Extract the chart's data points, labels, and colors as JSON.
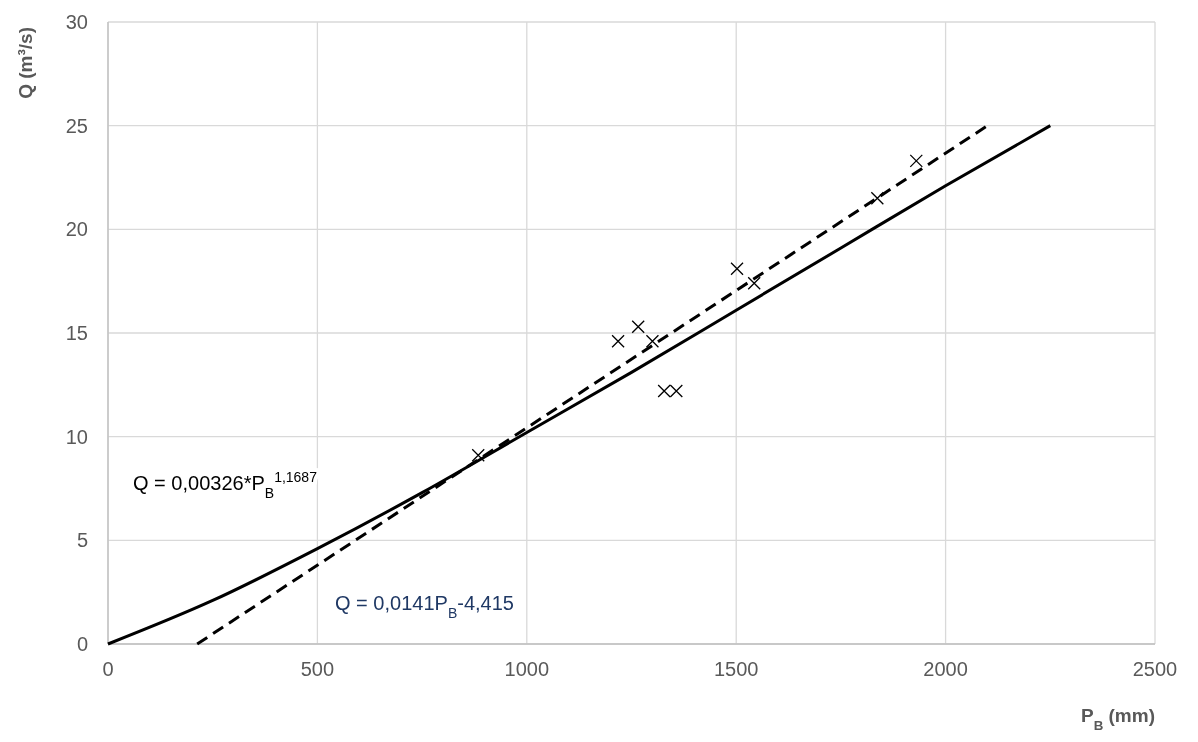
{
  "chart_data": {
    "type": "scatter",
    "xlabel": "P$_{B}$ (mm)",
    "ylabel": "Q (m³/s)",
    "xlim": [
      0,
      2500
    ],
    "xticks": [
      0,
      500,
      1000,
      1500,
      2000,
      2500
    ],
    "ylim": [
      0,
      30
    ],
    "yticks": [
      0,
      5,
      10,
      15,
      20,
      25,
      30
    ],
    "grid": true,
    "annotations": [
      "Q = 0,00326*P$_{B}$$^{1,1687}$",
      "Q = 0,0141P$_{B}$-4,415"
    ],
    "series": [
      {
        "color": "#000000",
        "marker": "cross",
        "x": [
          884,
          1218,
          1266,
          1300,
          1328,
          1357,
          1502,
          1543,
          1837,
          1930
        ],
        "values": [
          9.1,
          14.6,
          15.3,
          14.6,
          12.2,
          12.2,
          18.1,
          17.4,
          21.5,
          23.3
        ]
      },
      {
        "type": "line",
        "color": "#000000",
        "line_style": "solid",
        "marker": "none",
        "x": [
          0,
          250,
          500,
          750,
          1000,
          1250,
          1500,
          1750,
          2000,
          2250
        ],
        "values": [
          0,
          2.1,
          4.6,
          7.3,
          10.2,
          13.1,
          16.1,
          19.1,
          22.1,
          25
        ]
      },
      {
        "type": "line",
        "color": "#000000",
        "line_style": "dashed",
        "marker": "none",
        "x": [
          213,
          2100
        ],
        "values": [
          0,
          25
        ]
      }
    ]
  }
}
